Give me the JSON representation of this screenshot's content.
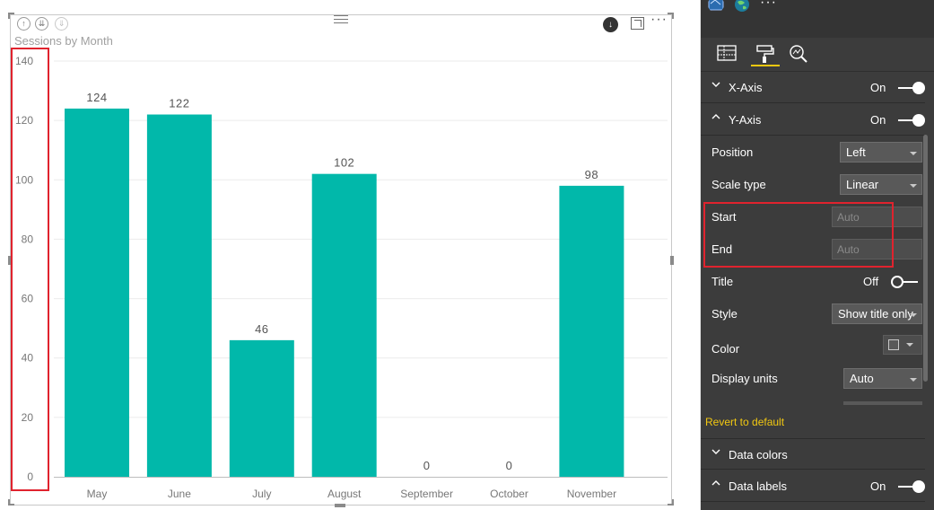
{
  "visual": {
    "title": "Sessions by Month",
    "more_label": "···"
  },
  "chart_data": {
    "type": "bar",
    "title": "Sessions by Month",
    "categories": [
      "May",
      "June",
      "July",
      "August",
      "September",
      "October",
      "November"
    ],
    "values": [
      124,
      122,
      46,
      102,
      0,
      0,
      98
    ],
    "data_labels": [
      "124",
      "122",
      "46",
      "102",
      "0",
      "0",
      "98"
    ],
    "ylim": [
      0,
      140
    ],
    "yticks": [
      0,
      20,
      40,
      60,
      80,
      100,
      120,
      140
    ],
    "xlabel": "",
    "ylabel": "",
    "grid": true,
    "bar_color": "#01b8aa"
  },
  "colors": {
    "bar": "#01b8aa",
    "highlight": "#e0232e",
    "pane_bg": "#3c3c3c",
    "accent_yellow": "#f2c811"
  },
  "pane": {
    "more_label": "···",
    "tabs": [
      {
        "icon": "fields-icon"
      },
      {
        "icon": "format-paint-roller-icon",
        "active": true
      },
      {
        "icon": "analytics-magnifier-icon"
      }
    ],
    "x_axis": {
      "label": "X-Axis",
      "state": "On"
    },
    "y_axis": {
      "label": "Y-Axis",
      "state": "On",
      "position_label": "Position",
      "position_value": "Left",
      "scale_type_label": "Scale type",
      "scale_type_value": "Linear",
      "start_label": "Start",
      "start_placeholder": "Auto",
      "end_label": "End",
      "end_placeholder": "Auto",
      "title_label": "Title",
      "title_state": "Off",
      "style_label": "Style",
      "style_value": "Show title only",
      "color_label": "Color",
      "display_units_label": "Display units",
      "display_units_value": "Auto"
    },
    "revert_label": "Revert to default",
    "data_colors_label": "Data colors",
    "data_labels": {
      "label": "Data labels",
      "state": "On"
    }
  }
}
